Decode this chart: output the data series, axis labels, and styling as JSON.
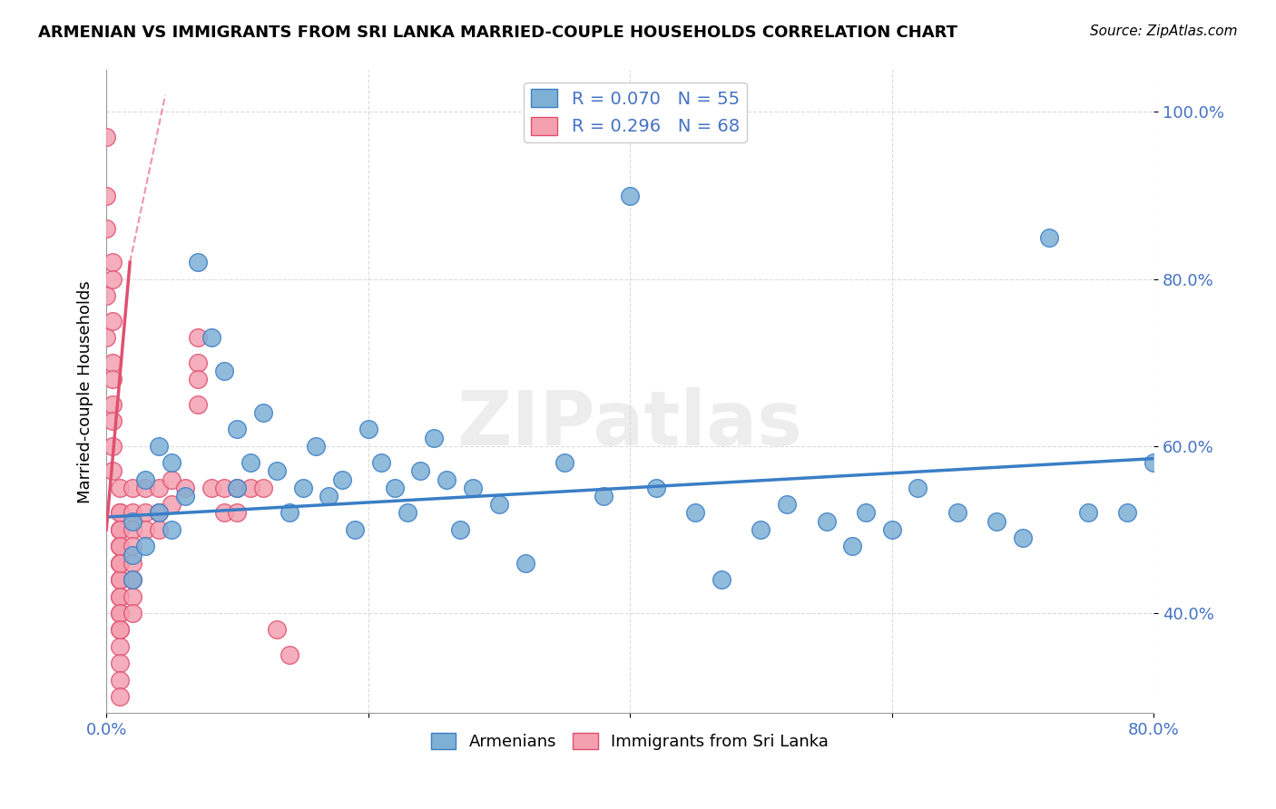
{
  "title": "ARMENIAN VS IMMIGRANTS FROM SRI LANKA MARRIED-COUPLE HOUSEHOLDS CORRELATION CHART",
  "source": "Source: ZipAtlas.com",
  "ylabel": "Married-couple Households",
  "xlabel": "",
  "xlim": [
    0.0,
    0.8
  ],
  "ylim": [
    0.28,
    1.05
  ],
  "xticks": [
    0.0,
    0.2,
    0.4,
    0.6,
    0.8
  ],
  "xtick_labels": [
    "0.0%",
    "",
    "",
    "",
    "80.0%"
  ],
  "ytick_labels": [
    "40.0%",
    "60.0%",
    "80.0%",
    "100.0%"
  ],
  "yticks": [
    0.4,
    0.6,
    0.8,
    1.0
  ],
  "blue_R": 0.07,
  "blue_N": 55,
  "pink_R": 0.296,
  "pink_N": 68,
  "blue_color": "#7EB0D5",
  "pink_color": "#F4A0B0",
  "blue_line_color": "#3A7EC6",
  "pink_line_color": "#E05070",
  "legend_label_blue": "Armenians",
  "legend_label_pink": "Immigrants from Sri Lanka",
  "watermark": "ZIPatlas",
  "blue_x": [
    0.02,
    0.02,
    0.02,
    0.03,
    0.03,
    0.04,
    0.04,
    0.05,
    0.05,
    0.06,
    0.07,
    0.08,
    0.09,
    0.1,
    0.1,
    0.11,
    0.12,
    0.13,
    0.14,
    0.15,
    0.16,
    0.17,
    0.18,
    0.19,
    0.2,
    0.21,
    0.22,
    0.23,
    0.24,
    0.25,
    0.26,
    0.27,
    0.28,
    0.3,
    0.32,
    0.35,
    0.38,
    0.4,
    0.42,
    0.45,
    0.47,
    0.5,
    0.52,
    0.55,
    0.57,
    0.58,
    0.6,
    0.62,
    0.65,
    0.68,
    0.7,
    0.72,
    0.75,
    0.78,
    0.8
  ],
  "blue_y": [
    0.51,
    0.47,
    0.44,
    0.56,
    0.48,
    0.6,
    0.52,
    0.58,
    0.5,
    0.54,
    0.82,
    0.73,
    0.69,
    0.62,
    0.55,
    0.58,
    0.64,
    0.57,
    0.52,
    0.55,
    0.6,
    0.54,
    0.56,
    0.5,
    0.62,
    0.58,
    0.55,
    0.52,
    0.57,
    0.61,
    0.56,
    0.5,
    0.55,
    0.53,
    0.46,
    0.58,
    0.54,
    0.9,
    0.55,
    0.52,
    0.44,
    0.5,
    0.53,
    0.51,
    0.48,
    0.52,
    0.5,
    0.55,
    0.52,
    0.51,
    0.49,
    0.85,
    0.52,
    0.52,
    0.58
  ],
  "pink_x": [
    0.0,
    0.0,
    0.0,
    0.0,
    0.0,
    0.005,
    0.005,
    0.005,
    0.005,
    0.005,
    0.005,
    0.005,
    0.005,
    0.005,
    0.01,
    0.01,
    0.01,
    0.01,
    0.01,
    0.01,
    0.01,
    0.01,
    0.01,
    0.01,
    0.01,
    0.01,
    0.01,
    0.01,
    0.01,
    0.01,
    0.01,
    0.01,
    0.01,
    0.01,
    0.01,
    0.01,
    0.01,
    0.01,
    0.02,
    0.02,
    0.02,
    0.02,
    0.02,
    0.02,
    0.02,
    0.02,
    0.03,
    0.03,
    0.03,
    0.04,
    0.04,
    0.04,
    0.05,
    0.05,
    0.06,
    0.07,
    0.07,
    0.07,
    0.07,
    0.08,
    0.09,
    0.09,
    0.1,
    0.1,
    0.11,
    0.12,
    0.13,
    0.14
  ],
  "pink_y": [
    0.97,
    0.9,
    0.86,
    0.78,
    0.73,
    0.82,
    0.8,
    0.75,
    0.7,
    0.68,
    0.65,
    0.63,
    0.6,
    0.57,
    0.55,
    0.52,
    0.5,
    0.48,
    0.46,
    0.44,
    0.42,
    0.4,
    0.38,
    0.36,
    0.34,
    0.32,
    0.3,
    0.5,
    0.48,
    0.46,
    0.44,
    0.42,
    0.4,
    0.38,
    0.52,
    0.5,
    0.48,
    0.46,
    0.55,
    0.52,
    0.5,
    0.48,
    0.46,
    0.44,
    0.42,
    0.4,
    0.55,
    0.52,
    0.5,
    0.55,
    0.52,
    0.5,
    0.56,
    0.53,
    0.55,
    0.73,
    0.7,
    0.68,
    0.65,
    0.55,
    0.55,
    0.52,
    0.55,
    0.52,
    0.55,
    0.55,
    0.38,
    0.35
  ]
}
